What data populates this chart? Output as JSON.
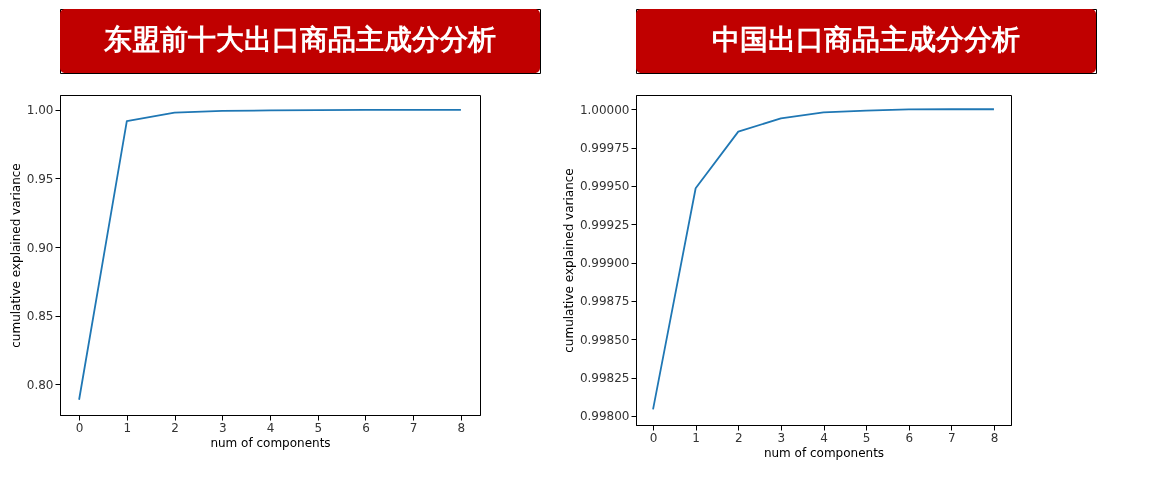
{
  "chart_data": [
    {
      "type": "line",
      "title": "东盟前十大出口商品主成分分析",
      "xlabel": "num of components",
      "ylabel": "cumulative explained variance",
      "x": [
        0,
        1,
        2,
        3,
        4,
        5,
        6,
        7,
        8
      ],
      "series": [
        {
          "color": "#1f77b4",
          "values": [
            0.7887,
            0.9917,
            0.998,
            0.9992,
            0.9996,
            0.9998,
            0.9999,
            1.0,
            1.0
          ]
        }
      ],
      "xlim": [
        -0.4,
        8.4
      ],
      "xticks": [
        0,
        1,
        2,
        3,
        4,
        5,
        6,
        7,
        8
      ],
      "ylim": [
        0.7776,
        1.0108
      ],
      "yticks": [
        {
          "value": 0.8,
          "label": "0.80"
        },
        {
          "value": 0.85,
          "label": "0.85"
        },
        {
          "value": 0.9,
          "label": "0.90"
        },
        {
          "value": 0.95,
          "label": "0.95"
        },
        {
          "value": 1.0,
          "label": "1.00"
        }
      ],
      "grid": false,
      "marker": "none",
      "line_style": "solid"
    },
    {
      "type": "line",
      "title": "中国出口商品主成分分析",
      "xlabel": "num of components",
      "ylabel": "cumulative explained variance",
      "x": [
        0,
        1,
        2,
        3,
        4,
        5,
        6,
        7,
        8
      ],
      "series": [
        {
          "color": "#1f77b4",
          "values": [
            0.998043,
            0.999485,
            0.999854,
            0.999941,
            0.99998,
            0.999991,
            0.999999,
            1.0,
            1.0
          ]
        }
      ],
      "xlim": [
        -0.4,
        8.4
      ],
      "xticks": [
        0,
        1,
        2,
        3,
        4,
        5,
        6,
        7,
        8
      ],
      "ylim": [
        0.997941,
        1.000093
      ],
      "yticks": [
        {
          "value": 0.998,
          "label": "0.99800"
        },
        {
          "value": 0.99825,
          "label": "0.99825"
        },
        {
          "value": 0.9985,
          "label": "0.99850"
        },
        {
          "value": 0.99875,
          "label": "0.99875"
        },
        {
          "value": 0.999,
          "label": "0.99900"
        },
        {
          "value": 0.99925,
          "label": "0.99925"
        },
        {
          "value": 0.9995,
          "label": "0.99950"
        },
        {
          "value": 0.99975,
          "label": "0.99975"
        },
        {
          "value": 1.0,
          "label": "1.00000"
        }
      ],
      "grid": false,
      "marker": "none",
      "line_style": "solid"
    }
  ]
}
